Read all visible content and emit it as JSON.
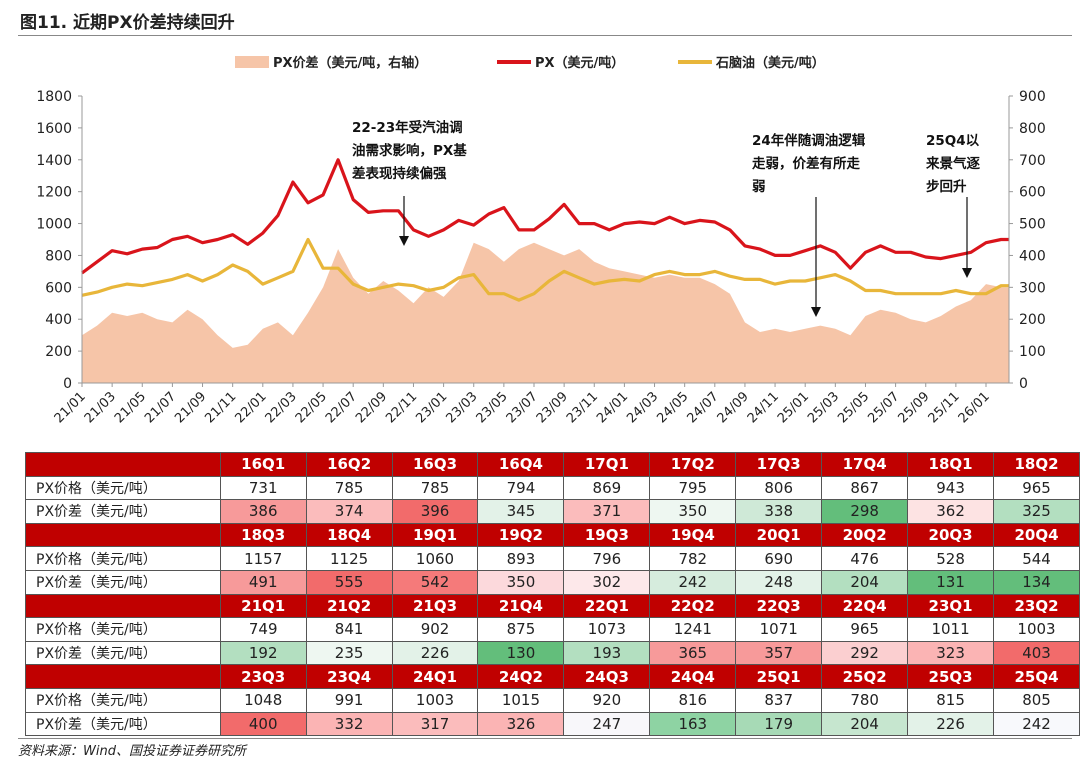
{
  "title": "图11. 近期PX价差持续回升",
  "source": "资料来源：Wind、国投证券证券研究所",
  "colors": {
    "px": "#d9141b",
    "naphtha": "#e8b63a",
    "spread": "#f6c5a8",
    "header": "#c00000"
  },
  "chart_data": {
    "type": "line",
    "title": "",
    "legend": [
      "PX价差（美元/吨，右轴）",
      "PX（美元/吨）",
      "石脑油（美元/吨）"
    ],
    "legend_position": "top",
    "ylim_left": [
      0,
      1800
    ],
    "ylim_right": [
      0,
      900
    ],
    "yticks_left": [
      "0",
      "200",
      "400",
      "600",
      "800",
      "1000",
      "1200",
      "1400",
      "1600",
      "1800"
    ],
    "yticks_right": [
      "0",
      "100",
      "200",
      "300",
      "400",
      "500",
      "600",
      "700",
      "800",
      "900"
    ],
    "xticks": [
      "21/01",
      "21/03",
      "21/05",
      "21/07",
      "21/09",
      "21/11",
      "22/01",
      "22/03",
      "22/05",
      "22/07",
      "22/09",
      "22/11",
      "23/01",
      "23/03",
      "23/05",
      "23/07",
      "23/09",
      "23/11",
      "24/01",
      "24/03",
      "24/05",
      "24/07",
      "24/09",
      "24/11",
      "25/01",
      "25/03",
      "25/05",
      "25/07",
      "25/09",
      "25/11",
      "26/01"
    ],
    "x": [
      "21/01",
      "21/02",
      "21/03",
      "21/04",
      "21/05",
      "21/06",
      "21/07",
      "21/08",
      "21/09",
      "21/10",
      "21/11",
      "21/12",
      "22/01",
      "22/02",
      "22/03",
      "22/04",
      "22/05",
      "22/06",
      "22/07",
      "22/08",
      "22/09",
      "22/10",
      "22/11",
      "22/12",
      "23/01",
      "23/02",
      "23/03",
      "23/04",
      "23/05",
      "23/06",
      "23/07",
      "23/08",
      "23/09",
      "23/10",
      "23/11",
      "23/12",
      "24/01",
      "24/02",
      "24/03",
      "24/04",
      "24/05",
      "24/06",
      "24/07",
      "24/08",
      "24/09",
      "24/10",
      "24/11",
      "24/12",
      "25/01",
      "25/02",
      "25/03",
      "25/04",
      "25/05",
      "25/06",
      "25/07",
      "25/08",
      "25/09",
      "25/10",
      "25/11",
      "25/12",
      "26/01",
      "26/02"
    ],
    "series": [
      {
        "name": "PX价差（美元/吨，右轴）",
        "axis": "right",
        "type": "area",
        "values": [
          150,
          180,
          220,
          210,
          220,
          200,
          190,
          230,
          200,
          150,
          110,
          120,
          170,
          190,
          150,
          220,
          300,
          420,
          330,
          280,
          320,
          290,
          250,
          300,
          270,
          320,
          440,
          420,
          380,
          420,
          440,
          420,
          400,
          420,
          380,
          360,
          350,
          340,
          330,
          340,
          330,
          330,
          310,
          280,
          190,
          160,
          170,
          160,
          170,
          180,
          170,
          150,
          210,
          230,
          220,
          200,
          190,
          210,
          240,
          260,
          310,
          300
        ]
      },
      {
        "name": "PX（美元/吨）",
        "axis": "left",
        "type": "line",
        "values": [
          690,
          760,
          830,
          810,
          840,
          850,
          900,
          920,
          880,
          900,
          930,
          870,
          940,
          1050,
          1260,
          1130,
          1180,
          1400,
          1150,
          1070,
          1080,
          1080,
          960,
          920,
          960,
          1020,
          990,
          1060,
          1100,
          960,
          960,
          1030,
          1120,
          1000,
          1000,
          960,
          1000,
          1010,
          1000,
          1040,
          1000,
          1020,
          1010,
          960,
          860,
          840,
          800,
          800,
          830,
          860,
          820,
          720,
          820,
          860,
          820,
          820,
          790,
          780,
          800,
          820,
          880,
          900
        ]
      },
      {
        "name": "石脑油（美元/吨）",
        "axis": "left",
        "type": "line",
        "values": [
          550,
          570,
          600,
          620,
          610,
          630,
          650,
          680,
          640,
          680,
          740,
          700,
          620,
          660,
          700,
          900,
          720,
          720,
          620,
          580,
          600,
          620,
          610,
          580,
          600,
          660,
          680,
          560,
          560,
          520,
          560,
          640,
          700,
          660,
          620,
          640,
          650,
          640,
          680,
          700,
          680,
          680,
          700,
          670,
          650,
          650,
          620,
          640,
          640,
          660,
          680,
          640,
          580,
          580,
          560,
          560,
          560,
          560,
          580,
          560,
          560,
          610
        ]
      }
    ],
    "annotations": [
      {
        "lines": [
          "22-23年受汽油调",
          "油需求影响，PX基",
          "差表现持续偏强"
        ]
      },
      {
        "lines": [
          "24年伴随调油逻辑",
          "走弱，价差有所走",
          "弱"
        ]
      },
      {
        "lines": [
          "25Q4以",
          "来景气逐",
          "步回升"
        ]
      }
    ]
  },
  "table": {
    "row_labels": {
      "price": "PX价格（美元/吨）",
      "spread": "PX价差（美元/吨）"
    },
    "blocks": [
      {
        "quarters": [
          "16Q1",
          "16Q2",
          "16Q3",
          "16Q4",
          "17Q1",
          "17Q2",
          "17Q3",
          "17Q4",
          "18Q1",
          "18Q2"
        ],
        "price": [
          "731",
          "785",
          "785",
          "794",
          "869",
          "795",
          "806",
          "867",
          "943",
          "965"
        ],
        "spread": [
          "386",
          "374",
          "396",
          "345",
          "371",
          "350",
          "338",
          "298",
          "362",
          "325"
        ],
        "spread_colors": [
          "#f79a9a",
          "#fbbcbc",
          "#f26b6b",
          "#e3f2e8",
          "#fbbcbc",
          "#eef7f1",
          "#cfe9d7",
          "#63be7b",
          "#fde3e3",
          "#b3dfc0"
        ]
      },
      {
        "quarters": [
          "18Q3",
          "18Q4",
          "19Q1",
          "19Q2",
          "19Q3",
          "19Q4",
          "20Q1",
          "20Q2",
          "20Q3",
          "20Q4"
        ],
        "price": [
          "1157",
          "1125",
          "1060",
          "893",
          "796",
          "782",
          "690",
          "476",
          "528",
          "544"
        ],
        "spread": [
          "491",
          "555",
          "542",
          "350",
          "302",
          "242",
          "248",
          "204",
          "131",
          "134"
        ],
        "spread_colors": [
          "#f79a9a",
          "#f26b6b",
          "#f57a7a",
          "#fcd9dc",
          "#fde8ea",
          "#d6ecdd",
          "#e3f2e8",
          "#b3dfc0",
          "#63be7b",
          "#63be7b"
        ]
      },
      {
        "quarters": [
          "21Q1",
          "21Q2",
          "21Q3",
          "21Q4",
          "22Q1",
          "22Q2",
          "22Q3",
          "22Q4",
          "23Q1",
          "23Q2"
        ],
        "price": [
          "749",
          "841",
          "902",
          "875",
          "1073",
          "1241",
          "1071",
          "965",
          "1011",
          "1003"
        ],
        "spread": [
          "192",
          "235",
          "226",
          "130",
          "193",
          "365",
          "357",
          "292",
          "323",
          "403"
        ],
        "spread_colors": [
          "#b3dfc0",
          "#eef7f1",
          "#e3f2e8",
          "#63be7b",
          "#b3dfc0",
          "#f79a9a",
          "#f79a9a",
          "#fbcfd0",
          "#fbb4b4",
          "#f26b6b"
        ]
      },
      {
        "quarters": [
          "23Q3",
          "23Q4",
          "24Q1",
          "24Q2",
          "24Q3",
          "24Q4",
          "25Q1",
          "25Q2",
          "25Q3",
          "25Q4"
        ],
        "price": [
          "1048",
          "991",
          "1003",
          "1015",
          "920",
          "816",
          "837",
          "780",
          "815",
          "805"
        ],
        "spread": [
          "400",
          "332",
          "317",
          "326",
          "247",
          "163",
          "179",
          "204",
          "226",
          "242"
        ],
        "spread_colors": [
          "#f26b6b",
          "#fbb4b4",
          "#fbbcbc",
          "#fbb4b4",
          "#f8f7fa",
          "#8ed3a3",
          "#a7dab6",
          "#c6e6cf",
          "#e3f2e8",
          "#f8f9fc"
        ]
      }
    ]
  }
}
